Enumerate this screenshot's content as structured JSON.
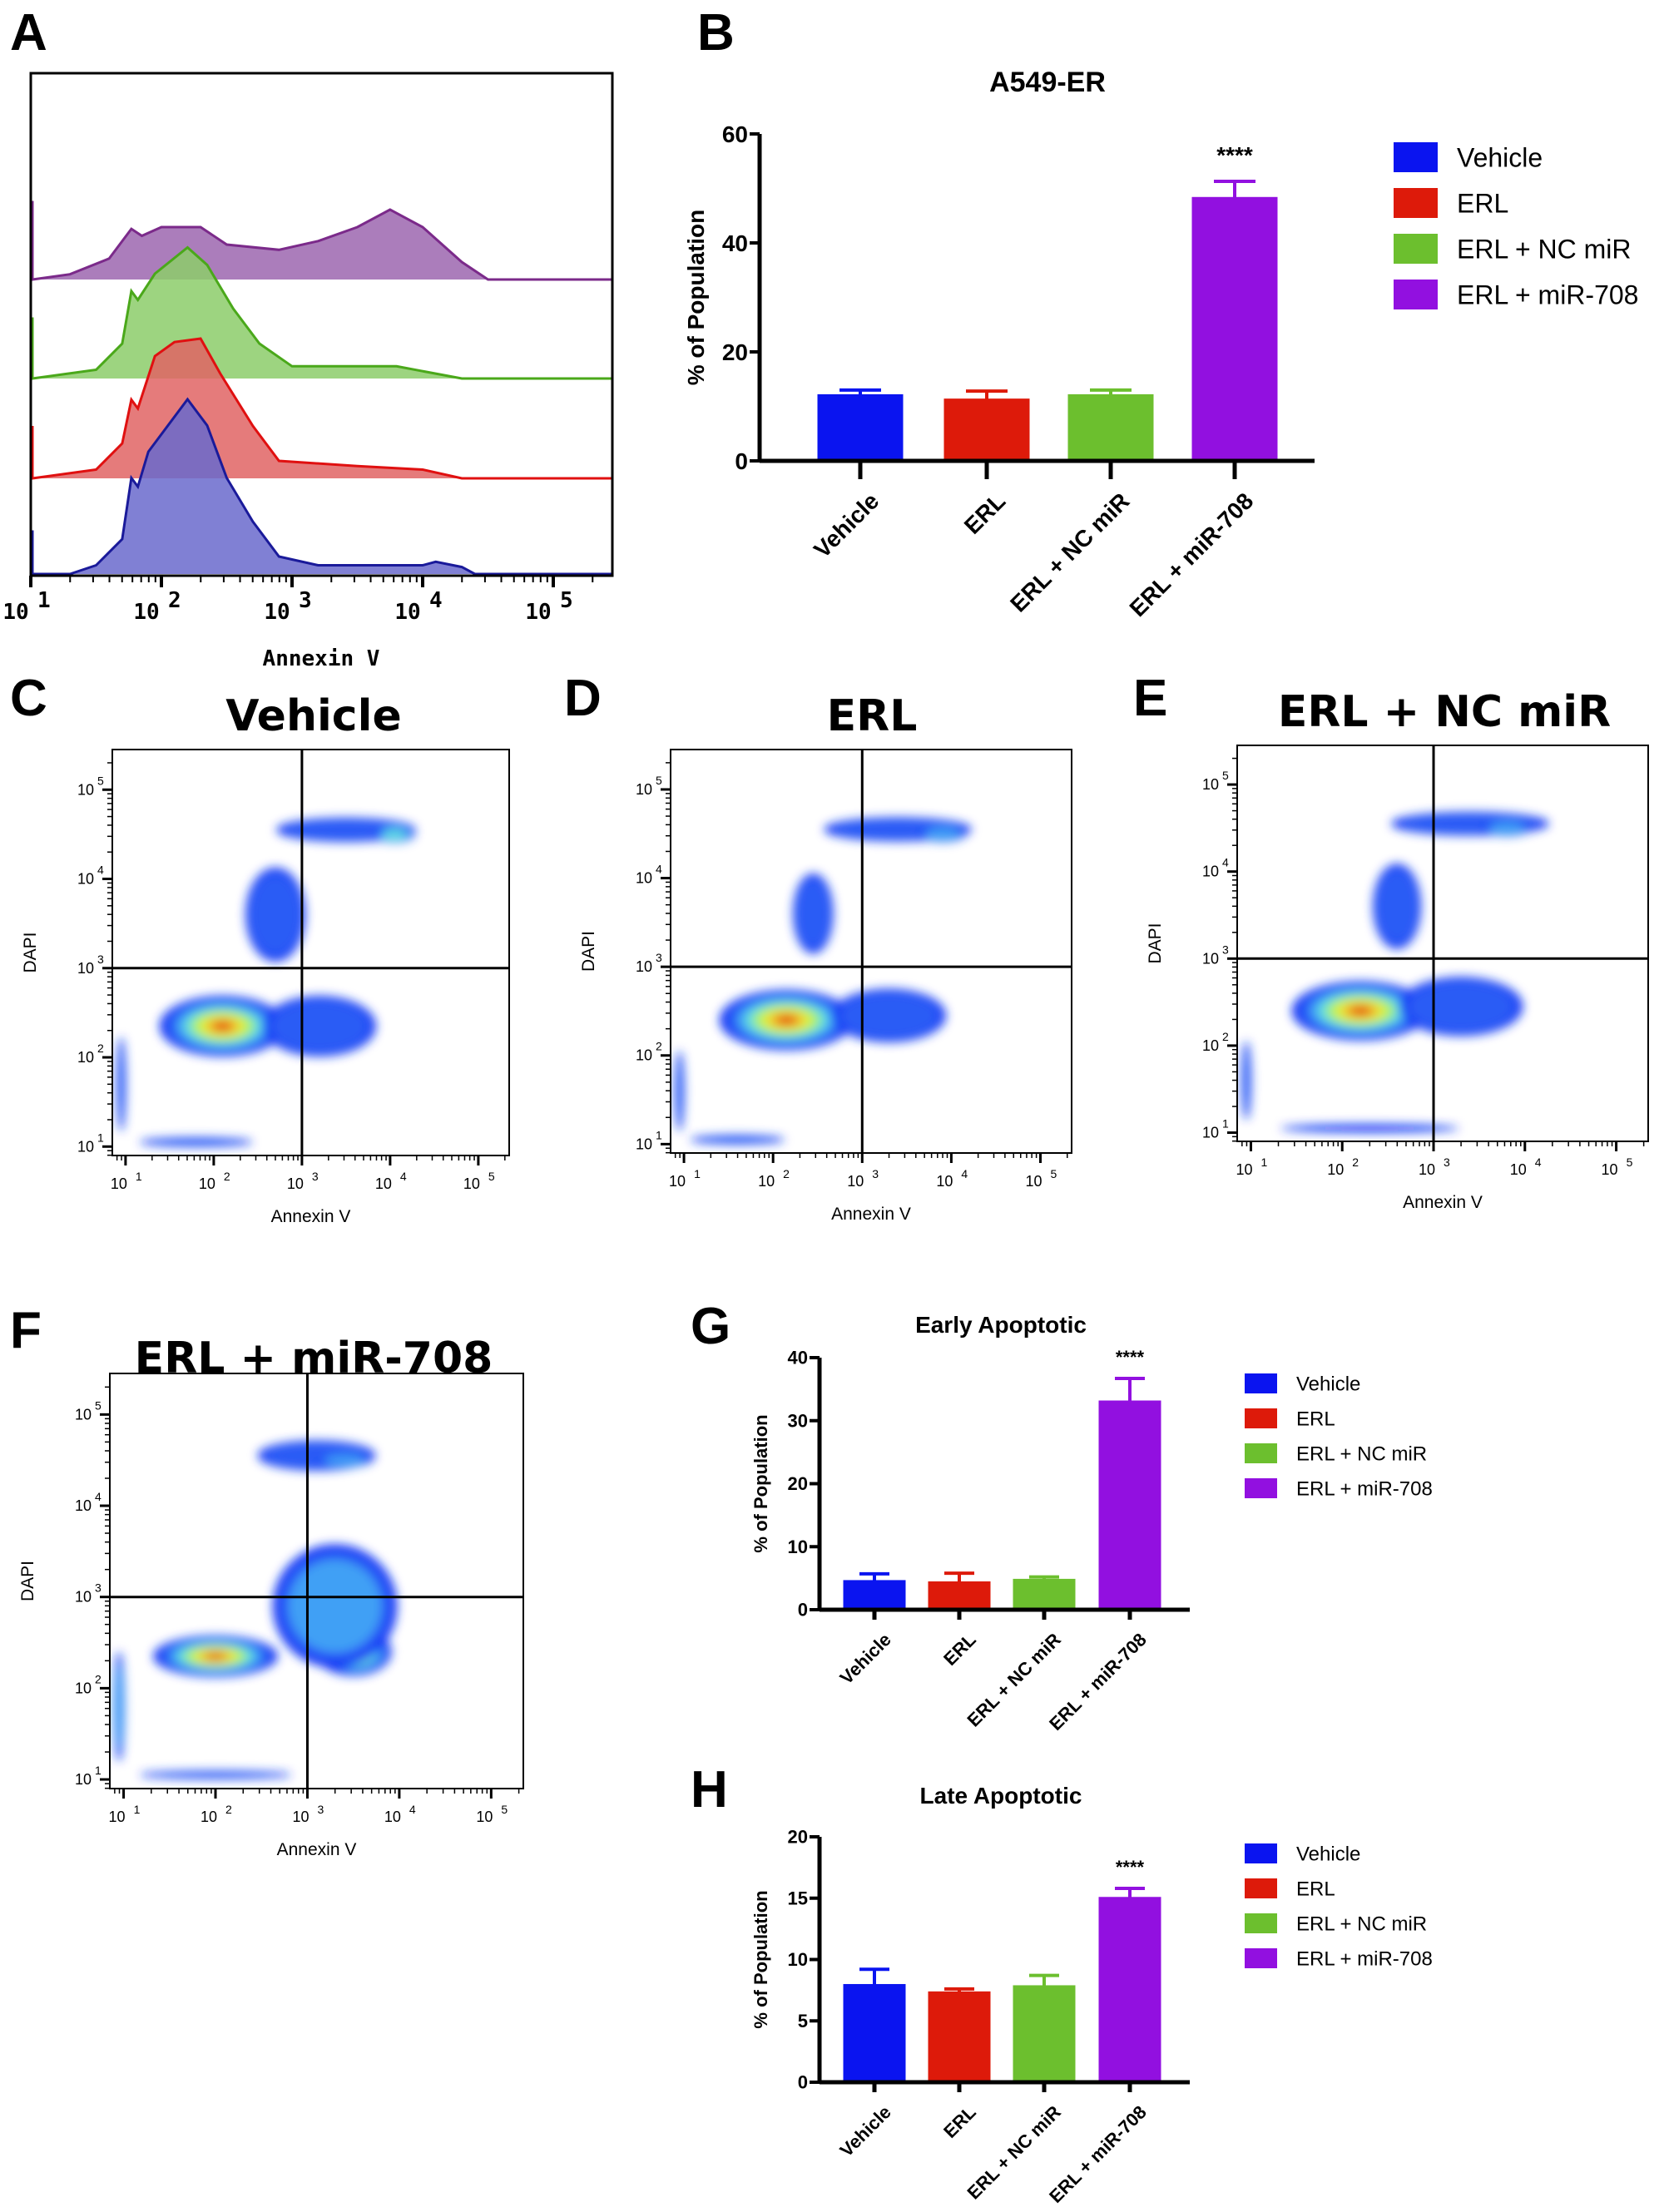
{
  "panel_letters": [
    "A",
    "B",
    "C",
    "D",
    "E",
    "F",
    "G",
    "H"
  ],
  "colors": {
    "Vehicle": "#0a14f0",
    "ERL": "#dd1a0a",
    "ERL + NC miR": "#6cbf2e",
    "ERL + miR-708": "#9210e0"
  },
  "chart_data": [
    {
      "panel": "A",
      "type": "area",
      "xlabel": "Annexin V",
      "xscale": "log",
      "xlim": [
        7,
        250000
      ],
      "xticks": [
        "10",
        "10",
        "10",
        "10",
        "10"
      ],
      "xtick_exponents": [
        "1",
        "2",
        "3",
        "4",
        "5"
      ],
      "series_note_order": "stacked offset histograms, top to bottom",
      "series": [
        {
          "color": "#7b2a8a",
          "fill": "#9c66af",
          "points": [
            [
              0.85,
              0.45
            ],
            [
              0.9,
              0
            ],
            [
              1.3,
              0.03
            ],
            [
              1.6,
              0.12
            ],
            [
              1.77,
              0.29
            ],
            [
              1.85,
              0.25
            ],
            [
              2.0,
              0.3
            ],
            [
              2.3,
              0.3
            ],
            [
              2.5,
              0.2
            ],
            [
              2.9,
              0.17
            ],
            [
              3.2,
              0.22
            ],
            [
              3.5,
              0.3
            ],
            [
              3.75,
              0.4
            ],
            [
              4.0,
              0.3
            ],
            [
              4.3,
              0.1
            ],
            [
              4.5,
              0
            ],
            [
              5.4,
              0
            ]
          ]
        },
        {
          "color": "#4aa81a",
          "fill": "#8ccd6a",
          "points": [
            [
              0.85,
              0.35
            ],
            [
              0.9,
              0
            ],
            [
              1.5,
              0.05
            ],
            [
              1.7,
              0.2
            ],
            [
              1.77,
              0.5
            ],
            [
              1.82,
              0.45
            ],
            [
              1.95,
              0.6
            ],
            [
              2.2,
              0.75
            ],
            [
              2.35,
              0.65
            ],
            [
              2.55,
              0.4
            ],
            [
              2.75,
              0.2
            ],
            [
              3.0,
              0.07
            ],
            [
              3.8,
              0.07
            ],
            [
              4.3,
              0
            ],
            [
              5.4,
              0
            ]
          ]
        },
        {
          "color": "#e01010",
          "fill": "#e06464",
          "points": [
            [
              0.85,
              0.3
            ],
            [
              0.9,
              0
            ],
            [
              1.5,
              0.05
            ],
            [
              1.7,
              0.2
            ],
            [
              1.77,
              0.45
            ],
            [
              1.82,
              0.4
            ],
            [
              1.95,
              0.7
            ],
            [
              2.1,
              0.78
            ],
            [
              2.3,
              0.8
            ],
            [
              2.45,
              0.6
            ],
            [
              2.7,
              0.3
            ],
            [
              2.9,
              0.1
            ],
            [
              3.5,
              0.07
            ],
            [
              4.0,
              0.05
            ],
            [
              4.3,
              0
            ],
            [
              5.4,
              0
            ]
          ]
        },
        {
          "color": "#1a1a9a",
          "fill": "#6a6acc",
          "points": [
            [
              0.85,
              0.25
            ],
            [
              0.9,
              0
            ],
            [
              1.3,
              0
            ],
            [
              1.5,
              0.05
            ],
            [
              1.7,
              0.2
            ],
            [
              1.77,
              0.55
            ],
            [
              1.82,
              0.5
            ],
            [
              1.9,
              0.7
            ],
            [
              2.2,
              1.0
            ],
            [
              2.35,
              0.85
            ],
            [
              2.5,
              0.55
            ],
            [
              2.7,
              0.3
            ],
            [
              2.9,
              0.1
            ],
            [
              3.2,
              0.05
            ],
            [
              4.0,
              0.05
            ],
            [
              4.1,
              0.07
            ],
            [
              4.3,
              0.04
            ],
            [
              4.4,
              0
            ],
            [
              5.4,
              0
            ]
          ]
        }
      ]
    },
    {
      "panel": "B",
      "type": "bar",
      "title": "A549-ER",
      "ylabel": "% of Population",
      "ylim": [
        0,
        60
      ],
      "yticks": [
        "0",
        "20",
        "40",
        "60"
      ],
      "categories": [
        "Vehicle",
        "ERL",
        "ERL + NC miR",
        "ERL + miR-708"
      ],
      "values": [
        12.0,
        11.2,
        12.0,
        48.2
      ],
      "error_upper": [
        13.0,
        12.8,
        13.0,
        51.3
      ],
      "significance": [
        "",
        "",
        "",
        "****"
      ],
      "legend": [
        "Vehicle",
        "ERL",
        "ERL + NC miR",
        "ERL + miR-708"
      ],
      "legend_position": "right"
    },
    {
      "panel": "C",
      "type": "heatmap",
      "title": "Vehicle",
      "xlabel": "Annexin V",
      "ylabel": "DAPI",
      "xscale": "log",
      "yscale": "log",
      "gates": {
        "x": 1000,
        "y": 1000
      },
      "tick_base": "10",
      "tick_exponents": [
        "1",
        "2",
        "3",
        "4",
        "5"
      ],
      "clusters": [
        {
          "x": 2.1,
          "y": 2.35,
          "sx": 0.95,
          "sy": 0.45,
          "peak": 1.0
        },
        {
          "x": 3.2,
          "y": 2.35,
          "sx": 0.85,
          "sy": 0.45,
          "peak": 0.25
        },
        {
          "x": 3.5,
          "y": 4.55,
          "sx": 1.05,
          "sy": 0.18,
          "peak": 0.25
        },
        {
          "x": 4.05,
          "y": 4.5,
          "sx": 0.3,
          "sy": 0.12,
          "peak": 0.45
        },
        {
          "x": 2.7,
          "y": 3.6,
          "sx": 0.45,
          "sy": 0.7,
          "peak": 0.25
        },
        {
          "x": 1.8,
          "y": 1.05,
          "sx": 0.85,
          "sy": 0.07,
          "peak": 0.2
        },
        {
          "x": 0.95,
          "y": 1.7,
          "sx": 0.07,
          "sy": 0.7,
          "peak": 0.25
        }
      ]
    },
    {
      "panel": "D",
      "type": "heatmap",
      "title": "ERL",
      "xlabel": "Annexin V",
      "ylabel": "DAPI",
      "xscale": "log",
      "yscale": "log",
      "gates": {
        "x": 1000,
        "y": 1000
      },
      "tick_base": "10",
      "tick_exponents": [
        "1",
        "2",
        "3",
        "4",
        "5"
      ],
      "clusters": [
        {
          "x": 2.15,
          "y": 2.4,
          "sx": 1.0,
          "sy": 0.45,
          "peak": 1.0
        },
        {
          "x": 3.3,
          "y": 2.45,
          "sx": 0.85,
          "sy": 0.4,
          "peak": 0.22
        },
        {
          "x": 3.4,
          "y": 4.55,
          "sx": 1.1,
          "sy": 0.18,
          "peak": 0.25
        },
        {
          "x": 3.9,
          "y": 4.5,
          "sx": 0.35,
          "sy": 0.12,
          "peak": 0.4
        },
        {
          "x": 2.45,
          "y": 3.6,
          "sx": 0.3,
          "sy": 0.6,
          "peak": 0.25
        },
        {
          "x": 1.6,
          "y": 1.05,
          "sx": 0.7,
          "sy": 0.07,
          "peak": 0.2
        },
        {
          "x": 0.95,
          "y": 1.6,
          "sx": 0.07,
          "sy": 0.6,
          "peak": 0.25
        }
      ]
    },
    {
      "panel": "E",
      "type": "heatmap",
      "title": "ERL + NC miR",
      "xlabel": "Annexin V",
      "ylabel": "DAPI",
      "xscale": "log",
      "yscale": "log",
      "gates": {
        "x": 1000,
        "y": 1000
      },
      "tick_base": "10",
      "tick_exponents": [
        "1",
        "2",
        "3",
        "4",
        "5"
      ],
      "clusters": [
        {
          "x": 2.2,
          "y": 2.4,
          "sx": 1.0,
          "sy": 0.45,
          "peak": 1.0
        },
        {
          "x": 3.3,
          "y": 2.45,
          "sx": 0.9,
          "sy": 0.45,
          "peak": 0.25
        },
        {
          "x": 3.4,
          "y": 4.55,
          "sx": 1.15,
          "sy": 0.18,
          "peak": 0.25
        },
        {
          "x": 3.8,
          "y": 4.5,
          "sx": 0.35,
          "sy": 0.12,
          "peak": 0.4
        },
        {
          "x": 2.6,
          "y": 3.6,
          "sx": 0.35,
          "sy": 0.65,
          "peak": 0.25
        },
        {
          "x": 2.3,
          "y": 1.05,
          "sx": 1.3,
          "sy": 0.06,
          "peak": 0.18
        },
        {
          "x": 0.95,
          "y": 1.6,
          "sx": 0.07,
          "sy": 0.6,
          "peak": 0.25
        }
      ]
    },
    {
      "panel": "F",
      "type": "heatmap",
      "title": "ERL + miR-708",
      "xlabel": "Annexin V",
      "ylabel": "DAPI",
      "xscale": "log",
      "yscale": "log",
      "gates": {
        "x": 1000,
        "y": 1000
      },
      "tick_base": "10",
      "tick_exponents": [
        "1",
        "2",
        "3",
        "4",
        "5"
      ],
      "clusters": [
        {
          "x": 2.0,
          "y": 2.35,
          "sx": 0.9,
          "sy": 0.3,
          "peak": 1.0
        },
        {
          "x": 3.5,
          "y": 2.4,
          "sx": 0.55,
          "sy": 0.35,
          "peak": 0.7
        },
        {
          "x": 3.3,
          "y": 2.9,
          "sx": 0.9,
          "sy": 0.9,
          "peak": 0.35
        },
        {
          "x": 3.1,
          "y": 4.55,
          "sx": 0.85,
          "sy": 0.22,
          "peak": 0.25
        },
        {
          "x": 3.4,
          "y": 4.5,
          "sx": 0.4,
          "sy": 0.1,
          "peak": 0.4
        },
        {
          "x": 2.0,
          "y": 1.05,
          "sx": 1.1,
          "sy": 0.06,
          "peak": 0.2
        },
        {
          "x": 0.95,
          "y": 1.8,
          "sx": 0.08,
          "sy": 0.8,
          "peak": 0.35
        }
      ]
    },
    {
      "panel": "G",
      "type": "bar",
      "title": "Early Apoptotic",
      "ylabel": "% of Population",
      "ylim": [
        0,
        40
      ],
      "yticks": [
        "0",
        "10",
        "20",
        "30",
        "40"
      ],
      "categories": [
        "Vehicle",
        "ERL",
        "ERL + NC miR",
        "ERL + miR-708"
      ],
      "values": [
        4.5,
        4.3,
        4.7,
        33.0
      ],
      "error_upper": [
        5.7,
        5.8,
        5.2,
        36.7
      ],
      "significance": [
        "",
        "",
        "",
        "****"
      ],
      "legend": [
        "Vehicle",
        "ERL",
        "ERL + NC miR",
        "ERL + miR-708"
      ],
      "legend_position": "right"
    },
    {
      "panel": "H",
      "type": "bar",
      "title": "Late Apoptotic",
      "ylabel": "% of Population",
      "ylim": [
        0,
        20
      ],
      "yticks": [
        "0",
        "5",
        "10",
        "15",
        "20"
      ],
      "categories": [
        "Vehicle",
        "ERL",
        "ERL + NC miR",
        "ERL + miR-708"
      ],
      "values": [
        7.9,
        7.3,
        7.8,
        15.0
      ],
      "error_upper": [
        9.2,
        7.6,
        8.7,
        15.8
      ],
      "significance": [
        "",
        "",
        "",
        "****"
      ],
      "legend": [
        "Vehicle",
        "ERL",
        "ERL + NC miR",
        "ERL + miR-708"
      ],
      "legend_position": "right"
    }
  ]
}
